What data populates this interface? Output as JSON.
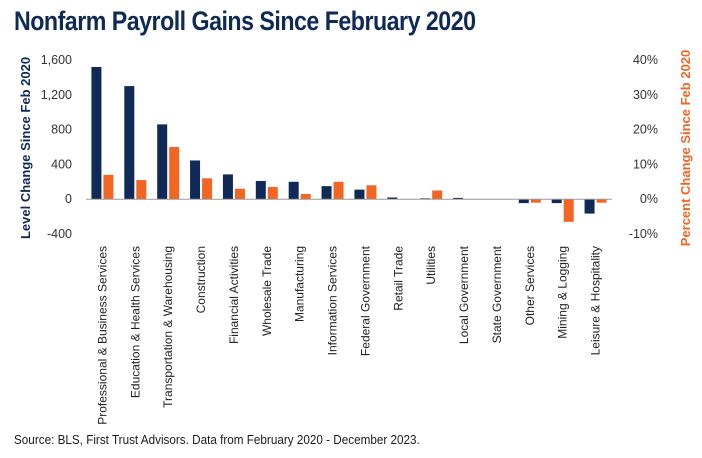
{
  "title": "Nonfarm Payroll Gains Since February 2020",
  "source": "Source: BLS, First Trust Advisors. Data from February 2020 - December 2023.",
  "chart_data": {
    "type": "bar",
    "title": "Nonfarm Payroll Gains Since February 2020",
    "ylabel": "Level Change Since Feb 2020",
    "y2label": "Percent Change Since Feb 2020",
    "ylim": [
      -400,
      1600
    ],
    "y2lim": [
      -10,
      40
    ],
    "yticks": [
      "1,600",
      "1,200",
      "800",
      "400",
      "0",
      "-400"
    ],
    "yticks_values": [
      1600,
      1200,
      800,
      400,
      0,
      -400
    ],
    "y2ticks": [
      "40%",
      "30%",
      "20%",
      "10%",
      "0%",
      "-10%"
    ],
    "y2ticks_values": [
      40,
      30,
      20,
      10,
      0,
      -10
    ],
    "grid": false,
    "legend": "none",
    "colors": {
      "level": "#0f2a57",
      "percent": "#f26522",
      "title": "#0f2a57",
      "axis_left": "#0f2a57",
      "axis_right": "#f26522"
    },
    "categories": [
      "Professional & Business Services",
      "Education & Health Services",
      "Transportation & Warehousing",
      "Construction",
      "Financial Activities",
      "Wholesale Trade",
      "Manufacturing",
      "Information Services",
      "Federal Government",
      "Retail Trade",
      "Utilities",
      "Local Government",
      "State Government",
      "Other Services",
      "Mining & Logging",
      "Leisure & Hospitality"
    ],
    "series": [
      {
        "axis": "left",
        "values": [
          1520,
          1300,
          860,
          445,
          285,
          210,
          200,
          150,
          110,
          20,
          10,
          15,
          0,
          -45,
          -45,
          -165
        ]
      },
      {
        "axis": "right",
        "values": [
          7.0,
          5.5,
          15.0,
          6.0,
          3.0,
          3.5,
          1.5,
          5.0,
          4.0,
          0.0,
          2.5,
          0.0,
          0.0,
          -1.0,
          -6.5,
          -1.0
        ]
      }
    ]
  }
}
